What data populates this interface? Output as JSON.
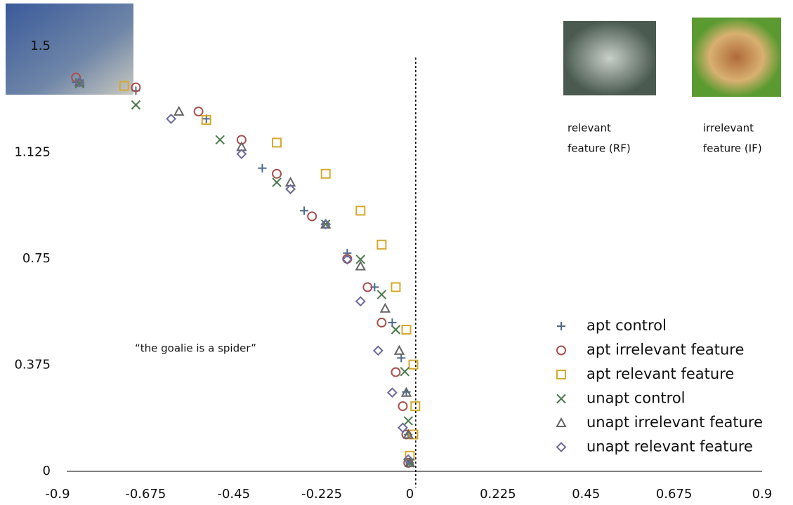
{
  "chart_data": {
    "type": "scatter",
    "annotation": "“the goalie is a spider”",
    "image_captions": [
      [
        "relevant",
        "feature (RF)"
      ],
      [
        "irrelevant",
        "feature (IF)"
      ]
    ],
    "xlim": [
      -0.9,
      0.9
    ],
    "ylim": [
      0,
      1.5
    ],
    "xticks": [
      -0.9,
      -0.675,
      -0.45,
      -0.225,
      0,
      0.225,
      0.45,
      0.675,
      0.9
    ],
    "yticks": [
      0,
      0.375,
      0.75,
      1.125,
      1.5
    ],
    "reference_x": 0.015,
    "series": [
      {
        "name": "apt control",
        "color": "#4d6b8c",
        "marker": "plus",
        "x": [
          -0.853,
          -0.7,
          -0.52,
          -0.377,
          -0.27,
          -0.16,
          -0.09,
          -0.045,
          -0.022,
          -0.009,
          -0.004,
          0
        ],
        "values": [
          1.373,
          1.343,
          1.244,
          1.07,
          0.92,
          0.77,
          0.65,
          0.525,
          0.4,
          0.28,
          0.13,
          0.03
        ]
      },
      {
        "name": "apt irrelevant feature",
        "color": "#a8504e",
        "marker": "circle",
        "x": [
          -0.853,
          -0.7,
          -0.54,
          -0.43,
          -0.34,
          -0.25,
          -0.16,
          -0.108,
          -0.072,
          -0.036,
          -0.018,
          -0.009,
          -0.004
        ],
        "values": [
          1.39,
          1.355,
          1.27,
          1.17,
          1.05,
          0.9,
          0.75,
          0.65,
          0.525,
          0.35,
          0.23,
          0.13,
          0.03
        ]
      },
      {
        "name": "apt relevant feature",
        "color": "#d6a92c",
        "marker": "square",
        "x": [
          -0.73,
          -0.52,
          -0.34,
          -0.215,
          -0.126,
          -0.072,
          -0.036,
          -0.009,
          0.009,
          0.014,
          0.009,
          0
        ],
        "values": [
          1.36,
          1.24,
          1.16,
          1.05,
          0.92,
          0.8,
          0.65,
          0.5,
          0.377,
          0.23,
          0.13,
          0.055
        ]
      },
      {
        "name": "unapt control",
        "color": "#4a7a4c",
        "marker": "cross",
        "x": [
          -0.844,
          -0.7,
          -0.485,
          -0.34,
          -0.215,
          -0.126,
          -0.072,
          -0.036,
          -0.013,
          -0.004,
          0
        ],
        "values": [
          1.368,
          1.293,
          1.17,
          1.02,
          0.872,
          0.748,
          0.624,
          0.5,
          0.352,
          0.178,
          0.03
        ]
      },
      {
        "name": "unapt irrelevant feature",
        "color": "#666666",
        "marker": "triangle",
        "x": [
          -0.844,
          -0.59,
          -0.43,
          -0.305,
          -0.215,
          -0.126,
          -0.063,
          -0.027,
          -0.009,
          -0.004,
          0
        ],
        "values": [
          1.373,
          1.27,
          1.145,
          1.02,
          0.872,
          0.724,
          0.575,
          0.426,
          0.278,
          0.13,
          0.03
        ]
      },
      {
        "name": "unapt relevant feature",
        "color": "#6a6a9c",
        "marker": "diamond",
        "x": [
          -0.844,
          -0.61,
          -0.43,
          -0.305,
          -0.215,
          -0.16,
          -0.126,
          -0.081,
          -0.045,
          -0.018,
          -0.004
        ],
        "values": [
          1.373,
          1.244,
          1.12,
          0.996,
          0.872,
          0.748,
          0.6,
          0.426,
          0.278,
          0.154,
          0.042
        ]
      }
    ]
  }
}
